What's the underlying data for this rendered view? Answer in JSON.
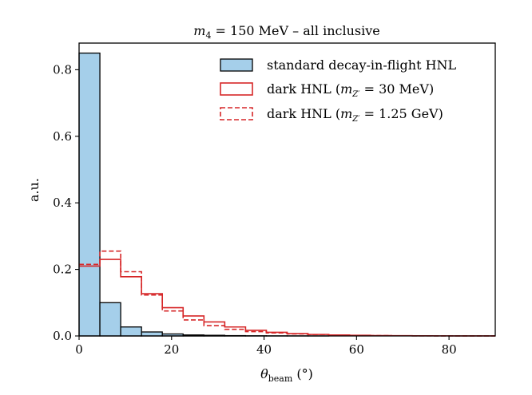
{
  "chart_data": {
    "type": "histogram",
    "title": "m₄ = 150 MeV – all inclusive",
    "xlabel": "θbeam (°)",
    "ylabel": "a.u.",
    "xlim": [
      0,
      90
    ],
    "ylim": [
      0,
      0.88
    ],
    "xticks": [
      0,
      20,
      40,
      60,
      80
    ],
    "xtick_labels": [
      "0",
      "20",
      "40",
      "60",
      "80"
    ],
    "yticks": [
      0.0,
      0.2,
      0.4,
      0.6,
      0.8
    ],
    "ytick_labels": [
      "0.0",
      "0.2",
      "0.4",
      "0.6",
      "0.8"
    ],
    "bin_edges": [
      0,
      4.5,
      9,
      13.5,
      18,
      22.5,
      27,
      31.5,
      36,
      40.5,
      45,
      49.5,
      54,
      58.5,
      63,
      67.5,
      72,
      76.5,
      81,
      85.5,
      90
    ],
    "legend_position": "top-right",
    "series": [
      {
        "name": "standard decay-in-flight HNL",
        "style": "filled",
        "color": "#a5cfea",
        "edge_color": "#000000",
        "values": [
          0.85,
          0.1,
          0.027,
          0.012,
          0.006,
          0.003,
          0.002,
          0.001,
          0.0005,
          0.0003,
          0.0002,
          0.0001,
          0,
          0,
          0,
          0,
          0,
          0,
          0,
          0
        ]
      },
      {
        "name": "dark HNL (mZ′ = 30 MeV)",
        "style": "step-solid",
        "color": "#d62728",
        "values": [
          0.21,
          0.23,
          0.178,
          0.127,
          0.085,
          0.06,
          0.042,
          0.027,
          0.017,
          0.011,
          0.007,
          0.0045,
          0.003,
          0.002,
          0.0012,
          0.0008,
          0.0005,
          0.0003,
          0.0002,
          0.0001
        ]
      },
      {
        "name": "dark HNL (mZ′ = 1.25 GeV)",
        "style": "step-dashed",
        "color": "#d62728",
        "values": [
          0.215,
          0.255,
          0.193,
          0.123,
          0.075,
          0.048,
          0.031,
          0.02,
          0.013,
          0.009,
          0.006,
          0.004,
          0.0025,
          0.0015,
          0.001,
          0.0006,
          0.0004,
          0.0002,
          0.0001,
          0.0001
        ]
      }
    ]
  },
  "legend": {
    "standard_label": "standard decay-in-flight HNL",
    "dark30_prefix": "dark HNL (",
    "dark30_mass": " = 30 MeV)",
    "dark125_prefix": "dark HNL (",
    "dark125_mass": " = 1.25 GeV)",
    "mass_symbol": "m",
    "mass_subscript": "Z′"
  },
  "title_parts": {
    "symbol": "m",
    "subscript": "4",
    "rest": " = 150 MeV – all inclusive"
  },
  "xlabel_parts": {
    "symbol": "θ",
    "subscript": "beam",
    "rest": " (°)"
  }
}
